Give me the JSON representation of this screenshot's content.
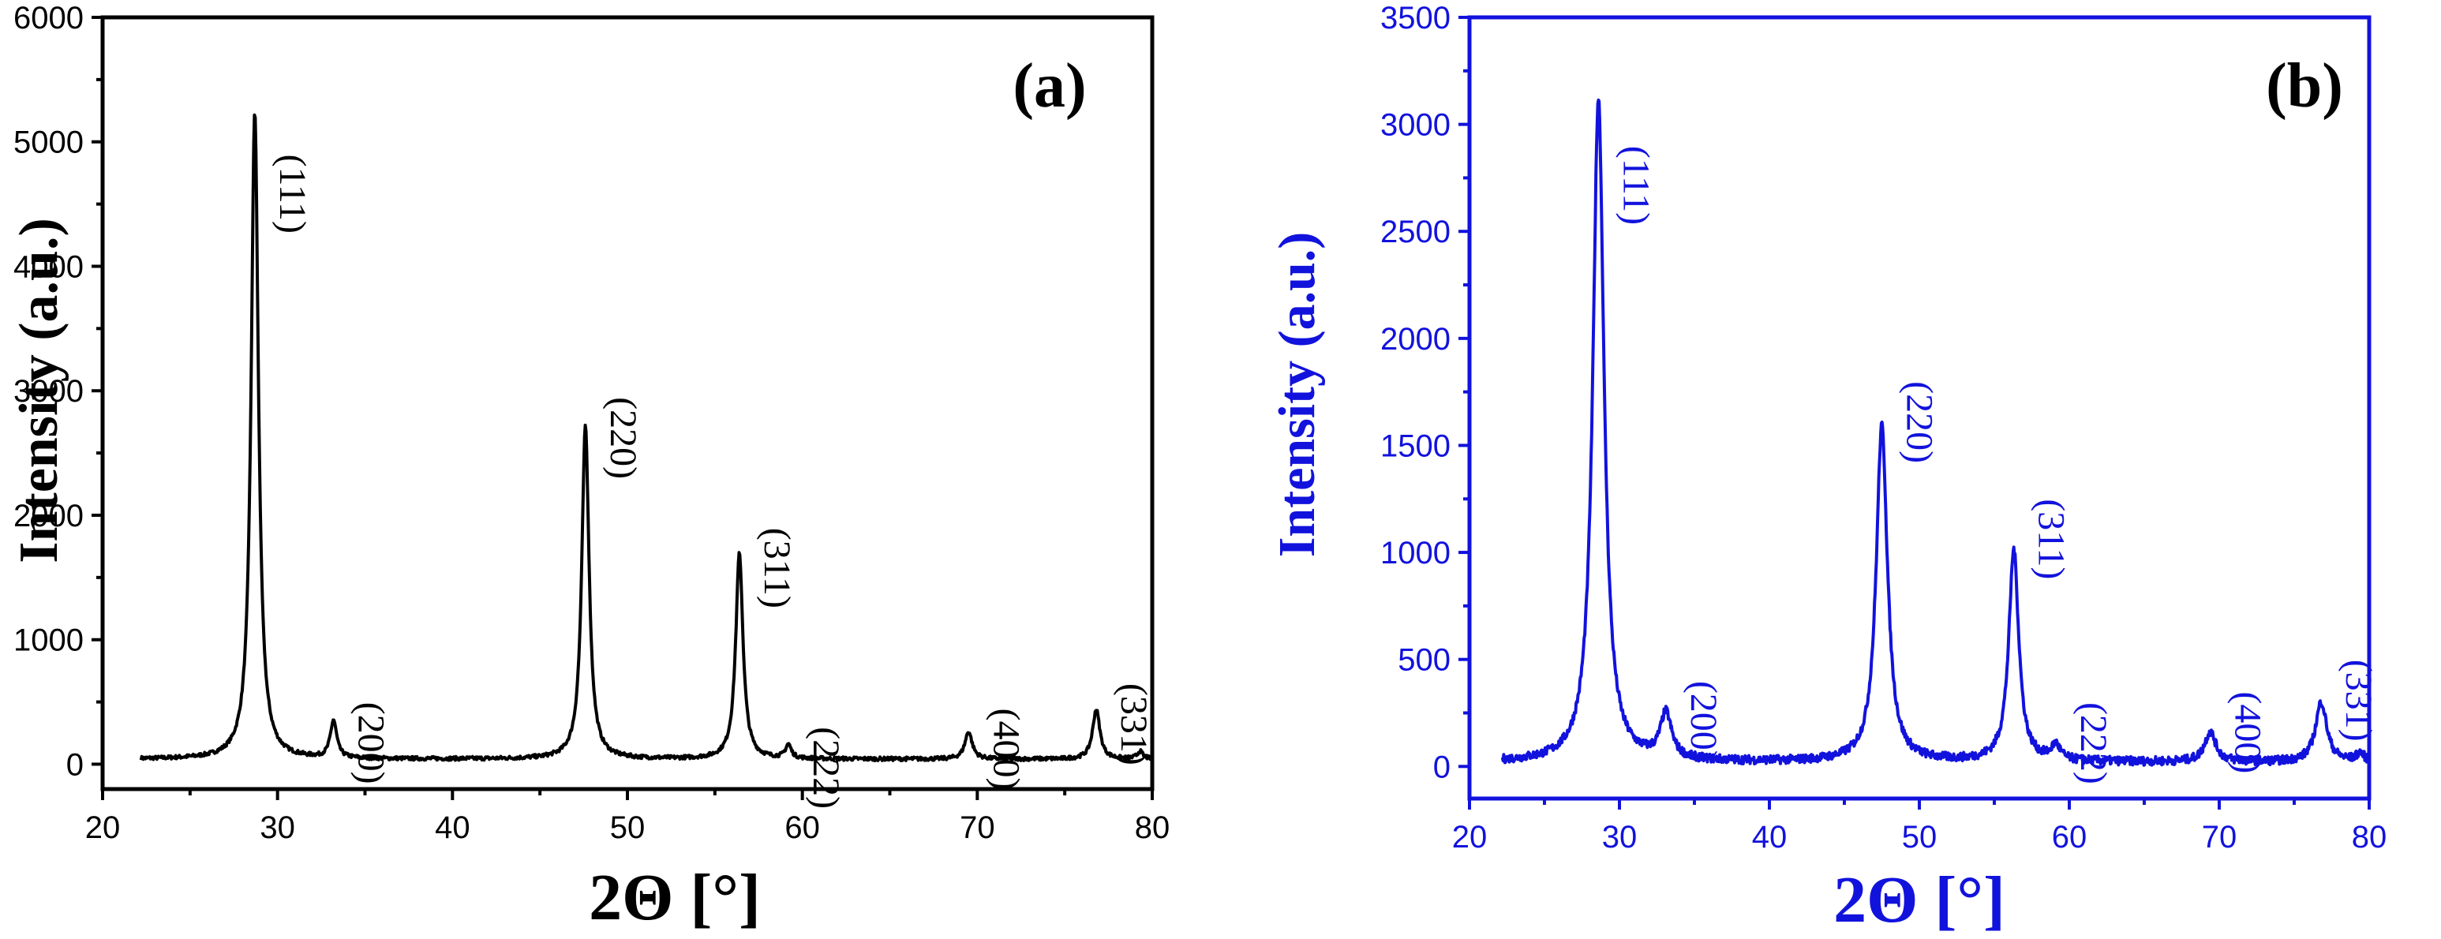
{
  "chart_data": [
    {
      "type": "line",
      "panel_label": "(a)",
      "color": "#000000",
      "xlabel": "2Θ [°]",
      "ylabel": "Intensity (a.u.)",
      "xlim": [
        20,
        80
      ],
      "ylim": [
        -200,
        6000
      ],
      "xticks": [
        20,
        30,
        40,
        50,
        60,
        70,
        80
      ],
      "yticks": [
        0,
        1000,
        2000,
        3000,
        4000,
        5000,
        6000
      ],
      "baseline": 40,
      "peaks": [
        {
          "label": "(111)",
          "x": 28.7,
          "y": 5200,
          "w": 0.25,
          "label_y": 4900
        },
        {
          "label": "(200)",
          "x": 33.2,
          "y": 300,
          "w": 0.22,
          "label_y": 500
        },
        {
          "label": "(220)",
          "x": 47.6,
          "y": 2680,
          "w": 0.25,
          "label_y": 2950
        },
        {
          "label": "(311)",
          "x": 56.4,
          "y": 1650,
          "w": 0.25,
          "label_y": 1900
        },
        {
          "label": "(222)",
          "x": 59.2,
          "y": 110,
          "w": 0.2,
          "label_y": 300
        },
        {
          "label": "(400)",
          "x": 69.5,
          "y": 220,
          "w": 0.25,
          "label_y": 450
        },
        {
          "label": "(331)",
          "x": 76.8,
          "y": 400,
          "w": 0.25,
          "label_y": 650
        },
        {
          "label": "",
          "x": 79.3,
          "y": 60,
          "w": 0.2
        }
      ]
    },
    {
      "type": "line",
      "panel_label": "(b)",
      "color": "#1212dd",
      "xlabel": "2Θ [°]",
      "ylabel": "Intensity (a.u.)",
      "xlim": [
        20,
        80
      ],
      "ylim": [
        -150,
        3500
      ],
      "xticks": [
        20,
        30,
        40,
        50,
        60,
        70,
        80
      ],
      "yticks": [
        0,
        500,
        1000,
        1500,
        2000,
        2500,
        3000,
        3500
      ],
      "baseline": 20,
      "peaks": [
        {
          "label": "(111)",
          "x": 28.6,
          "y": 3100,
          "w": 0.45,
          "label_y": 2900
        },
        {
          "label": "(200)",
          "x": 33.1,
          "y": 210,
          "w": 0.45,
          "label_y": 400
        },
        {
          "label": "(220)",
          "x": 47.5,
          "y": 1570,
          "w": 0.45,
          "label_y": 1800
        },
        {
          "label": "(311)",
          "x": 56.3,
          "y": 990,
          "w": 0.4,
          "label_y": 1250
        },
        {
          "label": "(222)",
          "x": 59.1,
          "y": 70,
          "w": 0.35,
          "label_y": 300
        },
        {
          "label": "(400)",
          "x": 69.4,
          "y": 140,
          "w": 0.45,
          "label_y": 350
        },
        {
          "label": "(331)",
          "x": 76.8,
          "y": 280,
          "w": 0.45,
          "label_y": 500
        },
        {
          "label": "",
          "x": 79.4,
          "y": 40,
          "w": 0.3
        }
      ]
    }
  ]
}
